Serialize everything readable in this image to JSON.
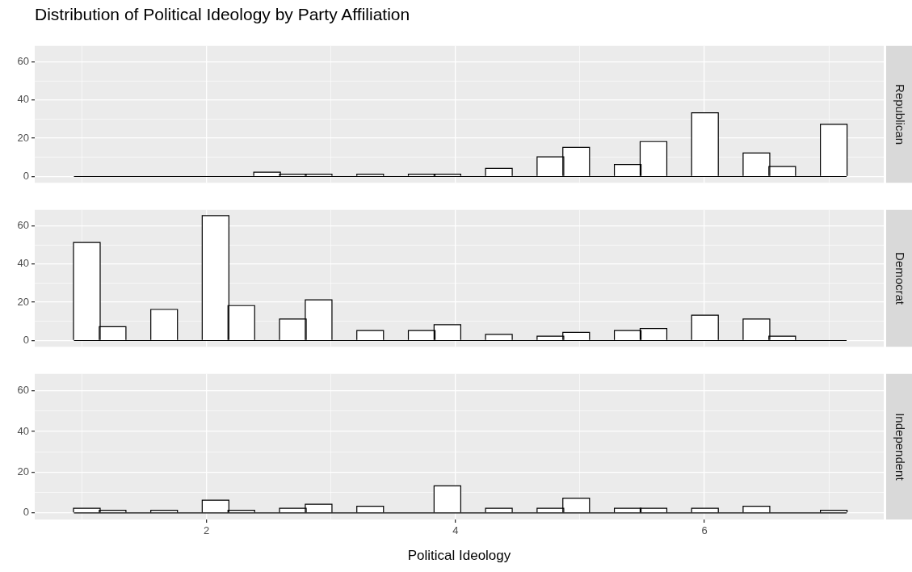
{
  "chart_data": [
    {
      "type": "histogram",
      "title": "Distribution of Political Ideology by Party Affiliation",
      "y2label": "Republican",
      "color": "#ffffff",
      "tick_labels": "y",
      "grid": true,
      "bins": [
        0.935,
        1.142,
        1.349,
        1.556,
        1.763,
        1.969,
        2.176,
        2.383,
        2.59,
        2.797,
        3.004,
        3.211,
        3.418,
        3.625,
        3.832,
        4.038,
        4.245,
        4.452,
        4.659,
        4.866,
        5.073,
        5.28,
        5.487,
        5.694,
        5.901,
        6.107,
        6.314,
        6.521,
        6.728,
        6.935,
        7.142
      ],
      "values": [
        0,
        0,
        0,
        0,
        0,
        0,
        0,
        2,
        1,
        1,
        0,
        1,
        0,
        1,
        1,
        0,
        4,
        0,
        10,
        15,
        0,
        6,
        18,
        0,
        33,
        0,
        12,
        5,
        0,
        27
      ],
      "xlim": [
        0.62,
        7.44
      ],
      "ylim": [
        -3.25,
        68.25
      ],
      "xticks": [
        {
          "value": 1,
          "label": null
        },
        2,
        {
          "value": 3,
          "label": null
        },
        4,
        {
          "value": 5,
          "label": null
        },
        6,
        {
          "value": 7,
          "label": null
        }
      ],
      "yticks": [
        0,
        {
          "value": 10,
          "label": null
        },
        20,
        {
          "value": 30,
          "label": null
        },
        40,
        {
          "value": 50,
          "label": null
        },
        60
      ]
    },
    {
      "type": "histogram",
      "y2label": "Democrat",
      "color": "#ffffff",
      "tick_labels": "y",
      "grid": true,
      "bins": [
        0.935,
        1.142,
        1.349,
        1.556,
        1.763,
        1.969,
        2.176,
        2.383,
        2.59,
        2.797,
        3.004,
        3.211,
        3.418,
        3.625,
        3.832,
        4.038,
        4.245,
        4.452,
        4.659,
        4.866,
        5.073,
        5.28,
        5.487,
        5.694,
        5.901,
        6.107,
        6.314,
        6.521,
        6.728,
        6.935,
        7.142
      ],
      "values": [
        51,
        7,
        0,
        16,
        0,
        65,
        18,
        0,
        11,
        21,
        0,
        5,
        0,
        5,
        8,
        0,
        3,
        0,
        2,
        4,
        0,
        5,
        6,
        0,
        13,
        0,
        11,
        2,
        0,
        0
      ],
      "xlim": [
        0.62,
        7.44
      ],
      "ylim": [
        -3.25,
        68.25
      ],
      "xticks": [
        {
          "value": 1,
          "label": null
        },
        2,
        {
          "value": 3,
          "label": null
        },
        4,
        {
          "value": 5,
          "label": null
        },
        6,
        {
          "value": 7,
          "label": null
        }
      ],
      "yticks": [
        0,
        {
          "value": 10,
          "label": null
        },
        20,
        {
          "value": 30,
          "label": null
        },
        40,
        {
          "value": 50,
          "label": null
        },
        60
      ]
    },
    {
      "type": "histogram",
      "y2label": "Independent",
      "xlabel": "Political Ideology",
      "color": "#ffffff",
      "grid": true,
      "bins": [
        0.935,
        1.142,
        1.349,
        1.556,
        1.763,
        1.969,
        2.176,
        2.383,
        2.59,
        2.797,
        3.004,
        3.211,
        3.418,
        3.625,
        3.832,
        4.038,
        4.245,
        4.452,
        4.659,
        4.866,
        5.073,
        5.28,
        5.487,
        5.694,
        5.901,
        6.107,
        6.314,
        6.521,
        6.728,
        6.935,
        7.142
      ],
      "values": [
        2,
        1,
        0,
        1,
        0,
        6,
        1,
        0,
        2,
        4,
        0,
        3,
        0,
        0,
        13,
        0,
        2,
        0,
        2,
        7,
        0,
        2,
        2,
        0,
        2,
        0,
        3,
        0,
        0,
        1
      ],
      "xlim": [
        0.62,
        7.44
      ],
      "ylim": [
        -3.25,
        68.25
      ],
      "xticks": [
        {
          "value": 1,
          "label": null
        },
        2,
        {
          "value": 3,
          "label": null
        },
        4,
        {
          "value": 5,
          "label": null
        },
        6,
        {
          "value": 7,
          "label": null
        }
      ],
      "yticks": [
        0,
        {
          "value": 10,
          "label": null
        },
        20,
        {
          "value": 30,
          "label": null
        },
        40,
        {
          "value": 50,
          "label": null
        },
        60
      ]
    }
  ]
}
